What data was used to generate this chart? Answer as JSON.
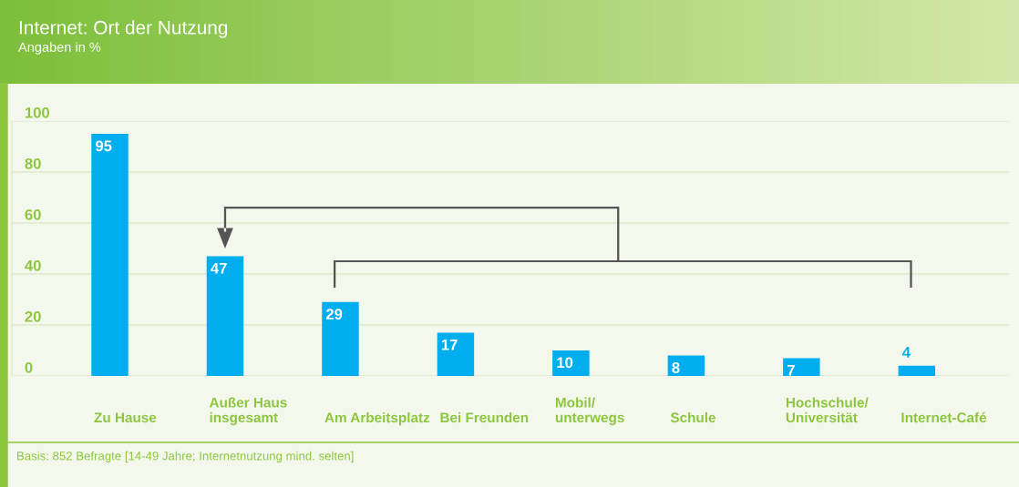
{
  "chart_data": {
    "type": "bar",
    "title": "Internet: Ort der Nutzung",
    "subtitle": "Angaben in %",
    "categories": [
      "Zu Hause",
      "Außer Haus\ninsgesamt",
      "Am Arbeitsplatz",
      "Bei Freunden",
      "Mobil/\nunterwegs",
      "Schule",
      "Hochschule/\nUniversität",
      "Internet-Café"
    ],
    "values": [
      95,
      47,
      29,
      17,
      10,
      8,
      7,
      4
    ],
    "color": "#00aeef",
    "ylim": [
      0,
      100
    ],
    "yticks": [
      0,
      20,
      40,
      60,
      80,
      100
    ],
    "grid": "y",
    "data_labels": true,
    "annotations": [
      "Basis: 852 Befragte [14-49 Jahre; Internetnutzung mind. selten]"
    ]
  }
}
